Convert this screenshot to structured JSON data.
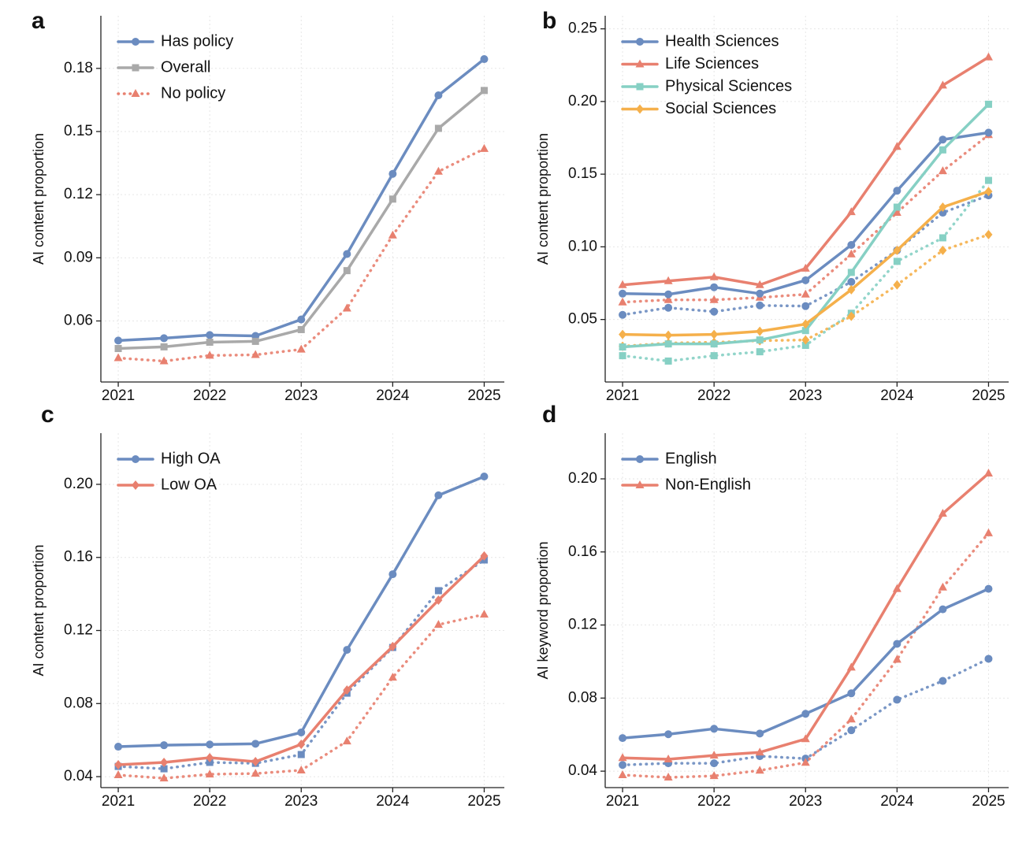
{
  "chart_data": [
    {
      "type": "line",
      "panel_label": "a",
      "ylabel": "AI content proportion",
      "legend": "upper left",
      "grid": true,
      "x": [
        2021,
        2021.5,
        2022,
        2022.5,
        2023,
        2023.5,
        2024,
        2024.5,
        2025
      ],
      "xlim": [
        2020.81,
        2025.22
      ],
      "xticks": [
        2021,
        2022,
        2023,
        2024,
        2025
      ],
      "ylim": [
        0.031,
        0.205
      ],
      "yticks": [
        {
          "value": 0.06,
          "label": "0.06"
        },
        {
          "value": 0.09,
          "label": "0.09"
        },
        {
          "value": 0.12,
          "label": "0.12"
        },
        {
          "value": 0.15,
          "label": "0.15"
        },
        {
          "value": 0.18,
          "label": "0.18"
        }
      ],
      "series": [
        {
          "name": "Has policy",
          "color": "#6b8cc0",
          "marker": "circle",
          "dotted": false,
          "values": [
            0.0507,
            0.0518,
            0.0533,
            0.0529,
            0.0607,
            0.0918,
            0.1299,
            0.1672,
            0.1844
          ]
        },
        {
          "name": "Overall",
          "color": "#a9a9a9",
          "marker": "square",
          "dotted": false,
          "values": [
            0.0469,
            0.0477,
            0.0499,
            0.0503,
            0.0559,
            0.0839,
            0.1179,
            0.1515,
            0.1695
          ]
        },
        {
          "name": "No policy",
          "color": "#e8806f",
          "marker": "triangle",
          "dotted": true,
          "values": [
            0.0424,
            0.0409,
            0.0436,
            0.0439,
            0.0465,
            0.066,
            0.1007,
            0.131,
            0.1418
          ]
        }
      ]
    },
    {
      "type": "line",
      "panel_label": "b",
      "ylabel": "AI content proportion",
      "legend": "upper left",
      "grid": true,
      "x": [
        2021,
        2021.5,
        2022,
        2022.5,
        2023,
        2023.5,
        2024,
        2024.5,
        2025
      ],
      "xlim": [
        2020.81,
        2025.22
      ],
      "xticks": [
        2021,
        2022,
        2023,
        2024,
        2025
      ],
      "ylim": [
        0.007,
        0.259
      ],
      "yticks": [
        {
          "value": 0.05,
          "label": "0.05"
        },
        {
          "value": 0.1,
          "label": "0.10"
        },
        {
          "value": 0.15,
          "label": "0.15"
        },
        {
          "value": 0.2,
          "label": "0.20"
        },
        {
          "value": 0.25,
          "label": "0.25"
        }
      ],
      "series": [
        {
          "name": "Health Sciences",
          "color": "#6b8cc0",
          "marker": "circle",
          "values": [
            0.0678,
            0.0673,
            0.0722,
            0.0678,
            0.077,
            0.1013,
            0.1386,
            0.1738,
            0.1786
          ],
          "dotted_values": [
            0.0532,
            0.0581,
            0.0554,
            0.0597,
            0.0592,
            0.0759,
            0.0976,
            0.1235,
            0.1354
          ]
        },
        {
          "name": "Life Sciences",
          "color": "#e8806f",
          "marker": "triangle",
          "values": [
            0.0738,
            0.0765,
            0.0792,
            0.0738,
            0.0851,
            0.124,
            0.1689,
            0.2111,
            0.2305
          ],
          "dotted_values": [
            0.0619,
            0.0635,
            0.0635,
            0.0651,
            0.0673,
            0.0949,
            0.1235,
            0.1522,
            0.177
          ]
        },
        {
          "name": "Physical Sciences",
          "color": "#86d0c4",
          "marker": "square",
          "values": [
            0.0311,
            0.0332,
            0.0332,
            0.0359,
            0.0424,
            0.0824,
            0.1273,
            0.1667,
            0.1981
          ],
          "dotted_values": [
            0.0251,
            0.0214,
            0.0251,
            0.0278,
            0.0322,
            0.0543,
            0.09,
            0.1062,
            0.1457
          ]
        },
        {
          "name": "Social Sciences",
          "color": "#f5b04b",
          "marker": "diamond",
          "values": [
            0.0397,
            0.0392,
            0.0397,
            0.0419,
            0.0468,
            0.0705,
            0.0976,
            0.1273,
            0.1381
          ],
          "dotted_values": [
            0.0316,
            0.0338,
            0.0343,
            0.0354,
            0.0359,
            0.0522,
            0.0738,
            0.0976,
            0.1084
          ]
        }
      ]
    },
    {
      "type": "line",
      "panel_label": "c",
      "ylabel": "AI content proportion",
      "legend": "upper left",
      "grid": true,
      "x": [
        2021,
        2021.5,
        2022,
        2022.5,
        2023,
        2023.5,
        2024,
        2024.5,
        2025
      ],
      "xlim": [
        2020.81,
        2025.22
      ],
      "xticks": [
        2021,
        2022,
        2023,
        2024,
        2025
      ],
      "ylim": [
        0.034,
        0.228
      ],
      "yticks": [
        {
          "value": 0.04,
          "label": "0.04"
        },
        {
          "value": 0.08,
          "label": "0.08"
        },
        {
          "value": 0.12,
          "label": "0.12"
        },
        {
          "value": 0.16,
          "label": "0.16"
        },
        {
          "value": 0.2,
          "label": "0.20"
        }
      ],
      "series": [
        {
          "name": "High OA",
          "color": "#6b8cc0",
          "marker": "circle",
          "dotted_marker": "square",
          "values": [
            0.0564,
            0.0572,
            0.0576,
            0.058,
            0.0642,
            0.1094,
            0.1508,
            0.194,
            0.2043
          ],
          "dotted_values": [
            0.0456,
            0.0443,
            0.0478,
            0.0473,
            0.0521,
            0.0857,
            0.1107,
            0.1418,
            0.1586
          ]
        },
        {
          "name": "Low OA",
          "color": "#e8806f",
          "marker": "diamond",
          "dotted_marker": "triangle",
          "values": [
            0.0465,
            0.0478,
            0.0504,
            0.0482,
            0.0577,
            0.0874,
            0.1112,
            0.1366,
            0.1608
          ],
          "dotted_values": [
            0.0409,
            0.0391,
            0.0413,
            0.0417,
            0.0435,
            0.0594,
            0.0943,
            0.1232,
            0.1288
          ]
        }
      ]
    },
    {
      "type": "line",
      "panel_label": "d",
      "ylabel": "AI keyword proportion",
      "legend": "upper left",
      "grid": true,
      "x": [
        2021,
        2021.5,
        2022,
        2022.5,
        2023,
        2023.5,
        2024,
        2024.5,
        2025
      ],
      "xlim": [
        2020.81,
        2025.22
      ],
      "xticks": [
        2021,
        2022,
        2023,
        2024,
        2025
      ],
      "ylim": [
        0.031,
        0.225
      ],
      "yticks": [
        {
          "value": 0.04,
          "label": "0.04"
        },
        {
          "value": 0.08,
          "label": "0.08"
        },
        {
          "value": 0.12,
          "label": "0.12"
        },
        {
          "value": 0.16,
          "label": "0.16"
        },
        {
          "value": 0.2,
          "label": "0.20"
        }
      ],
      "series": [
        {
          "name": "English",
          "color": "#6b8cc0",
          "marker": "circle",
          "values": [
            0.0581,
            0.0602,
            0.0632,
            0.0606,
            0.0714,
            0.0826,
            0.1097,
            0.1286,
            0.1398
          ],
          "dotted_values": [
            0.0434,
            0.0443,
            0.0443,
            0.0482,
            0.0469,
            0.0624,
            0.0791,
            0.0894,
            0.1015
          ]
        },
        {
          "name": "Non-English",
          "color": "#e8806f",
          "marker": "triangle",
          "values": [
            0.0473,
            0.0465,
            0.0486,
            0.0503,
            0.0576,
            0.0968,
            0.1398,
            0.181,
            0.203
          ],
          "dotted_values": [
            0.0379,
            0.0366,
            0.0374,
            0.0404,
            0.0447,
            0.0684,
            0.1011,
            0.1406,
            0.1703
          ]
        }
      ]
    }
  ]
}
